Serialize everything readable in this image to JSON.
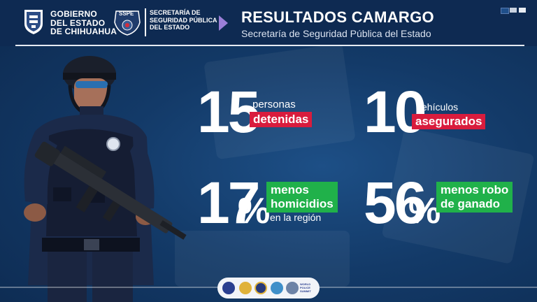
{
  "header": {
    "gov_lines": [
      "GOBIERNO",
      "DEL ESTADO",
      "DE CHIHUAHUA"
    ],
    "sspe_logo_text": "SSPE",
    "sspe_lines": [
      "SECRETARÍA DE",
      "SEGURIDAD PÚBLICA",
      "DEL ESTADO"
    ],
    "title": "RESULTADOS CAMARGO",
    "subtitle": "Secretaría de Seguridad Pública del Estado",
    "corner_squares": [
      "#1f4f8a",
      "#c8d1df",
      "#e9edf3"
    ],
    "chevron_color": "#9b7fd8"
  },
  "stats": {
    "detenidos": {
      "number": "15",
      "label_top": "personas",
      "tag": "detenidas"
    },
    "vehiculos": {
      "number": "10",
      "label_top": "vehículos",
      "tag": "asegurados"
    },
    "homicidios": {
      "number": "17",
      "percent": "%",
      "tag_lines": [
        "menos",
        "homicidios"
      ],
      "label_bottom": "en la región"
    },
    "ganado": {
      "number": "56",
      "percent": "%",
      "tag_lines": [
        "menos robo",
        "de ganado"
      ]
    }
  },
  "colors": {
    "red_tag": "#d91c3d",
    "green_tag": "#20b14a",
    "header_bg": "#0e2a52"
  },
  "footer": {
    "logo_colors": [
      "#2a3f8f",
      "#e0b23a",
      "#27397a",
      "#3f8fc9",
      "#6d83a6"
    ],
    "wps_text": "WORLD POLICE SUMMIT"
  }
}
